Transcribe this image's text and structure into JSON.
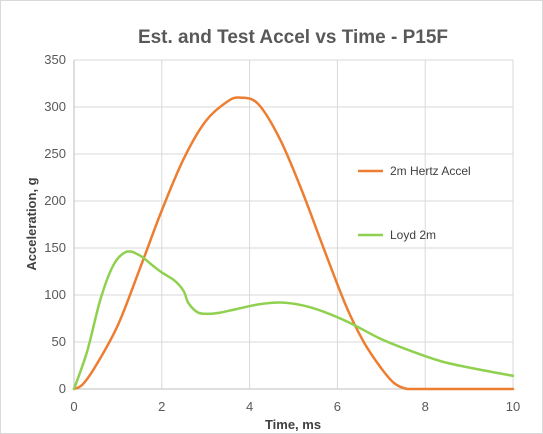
{
  "chart_data": {
    "type": "line",
    "title": "Est. and Test Accel vs Time - P15F",
    "xlabel": "Time, ms",
    "ylabel": "Acceleration, g",
    "xlim": [
      0,
      10
    ],
    "ylim": [
      0,
      350
    ],
    "xticks": [
      0,
      2,
      4,
      6,
      8,
      10
    ],
    "yticks": [
      0,
      50,
      100,
      150,
      200,
      250,
      300,
      350
    ],
    "grid": true,
    "legend_position": "right",
    "series": [
      {
        "name": "2m Hertz Accel",
        "color": "#ed7d31",
        "x": [
          0,
          0.2,
          0.5,
          1.0,
          1.5,
          2.0,
          2.5,
          3.0,
          3.5,
          3.8,
          4.2,
          4.7,
          5.2,
          5.7,
          6.2,
          6.6,
          7.0,
          7.3,
          7.6,
          8,
          9,
          10
        ],
        "y": [
          0,
          5,
          25,
          68,
          128,
          190,
          245,
          285,
          306,
          310,
          303,
          265,
          210,
          148,
          88,
          50,
          22,
          6,
          0,
          0,
          0,
          0
        ]
      },
      {
        "name": "Loyd 2m",
        "color": "#8fd14f",
        "x": [
          0,
          0.3,
          0.6,
          0.9,
          1.2,
          1.5,
          1.8,
          2.0,
          2.3,
          2.5,
          2.6,
          2.8,
          3.0,
          3.3,
          3.7,
          4.2,
          4.7,
          5.2,
          5.7,
          6.3,
          7.0,
          7.7,
          8.4,
          9.2,
          10.0
        ],
        "y": [
          0,
          40,
          95,
          132,
          146,
          142,
          131,
          124,
          115,
          104,
          92,
          82,
          80,
          81,
          85,
          90,
          92,
          89,
          82,
          70,
          53,
          40,
          29,
          21,
          14
        ]
      }
    ]
  }
}
